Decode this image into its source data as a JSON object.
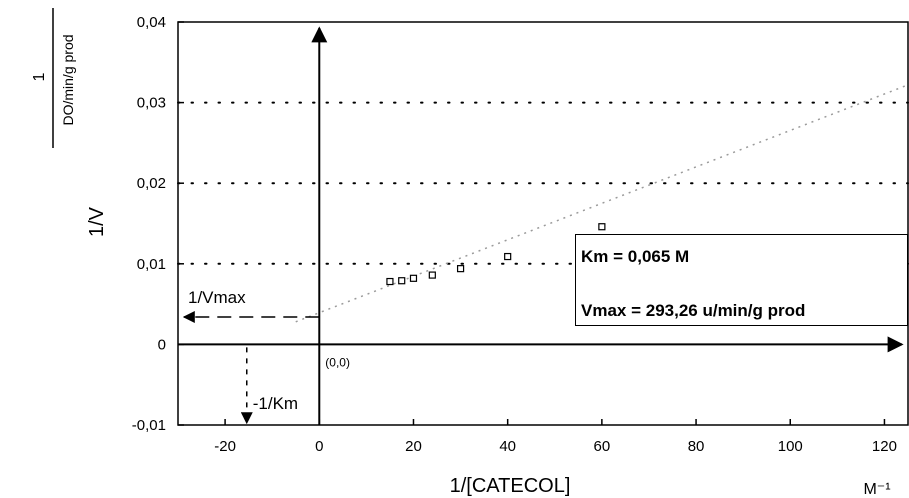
{
  "chart_data": {
    "type": "scatter",
    "xlabel": "1/[CATECOL]",
    "xunit": "M⁻¹",
    "ylabel": "1/V",
    "yunit_numerator": "1",
    "yunit_denominator": "DO/min/g prod",
    "xlim": [
      -30,
      125
    ],
    "ylim": [
      -0.01,
      0.04
    ],
    "xticks": [
      "-20",
      "0",
      "20",
      "40",
      "60",
      "80",
      "100",
      "120"
    ],
    "xtick_values": [
      -20,
      0,
      20,
      40,
      60,
      80,
      100,
      120
    ],
    "yticks": [
      "-0,01",
      "0",
      "0,01",
      "0,02",
      "0,03",
      "0,04"
    ],
    "ytick_values": [
      -0.01,
      0,
      0.01,
      0.02,
      0.03,
      0.04
    ],
    "grid": "horizontal-dotted",
    "series": [
      {
        "x": [
          15,
          17.5,
          20,
          24,
          30,
          40,
          60
        ],
        "y": [
          0.0078,
          0.0079,
          0.0082,
          0.0086,
          0.0094,
          0.0109,
          0.0146
        ]
      }
    ],
    "fit_line": {
      "x": [
        -5,
        125
      ],
      "y": [
        0.0028,
        0.0322
      ]
    },
    "origin_label": "(0,0)",
    "annotations": {
      "vmax_label": "1/Vmax",
      "vmax_y": 0.0034,
      "km_label": "-1/Km",
      "km_x": -15.4,
      "km_text": "Km = 0,065 M",
      "vmax_text": "Vmax = 293,26 u/min/g prod"
    }
  }
}
